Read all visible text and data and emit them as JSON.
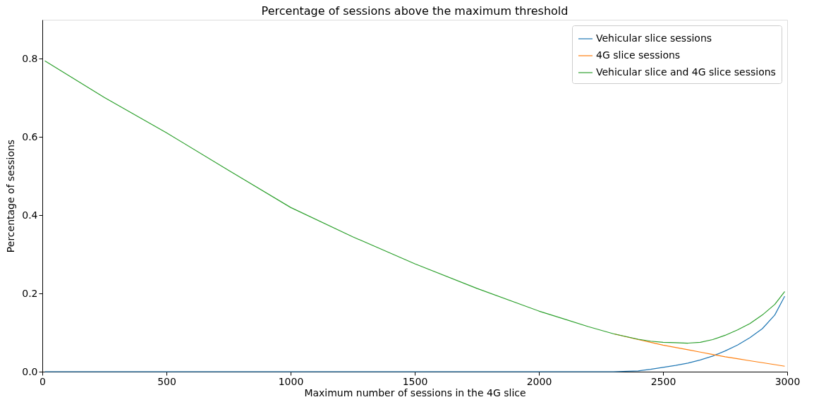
{
  "chart_data": {
    "type": "line",
    "title": "Percentage of sessions above the maximum threshold",
    "xlabel": "Maximum number of sessions in the 4G slice",
    "ylabel": "Percentage of sessions",
    "x": [
      10,
      250,
      500,
      750,
      1000,
      1250,
      1500,
      1750,
      2000,
      2100,
      2200,
      2300,
      2400,
      2450,
      2500,
      2550,
      2600,
      2650,
      2700,
      2750,
      2800,
      2850,
      2900,
      2950,
      2990
    ],
    "series": [
      {
        "name": "Vehicular slice sessions",
        "color": "#1f77b4",
        "values": [
          0,
          0,
          0,
          0,
          0,
          0,
          0,
          0,
          0,
          0,
          0,
          0,
          0.002,
          0.006,
          0.011,
          0.016,
          0.022,
          0.03,
          0.04,
          0.053,
          0.068,
          0.087,
          0.11,
          0.145,
          0.193
        ]
      },
      {
        "name": "4G slice sessions",
        "color": "#ff7f0e",
        "values": [
          null,
          null,
          null,
          null,
          null,
          null,
          null,
          null,
          null,
          null,
          null,
          0.097,
          0.082,
          0.075,
          0.068,
          0.062,
          0.056,
          0.05,
          0.044,
          0.038,
          0.033,
          0.028,
          0.023,
          0.018,
          0.014
        ]
      },
      {
        "name": "Vehicular slice and 4G slice sessions",
        "color": "#2ca02c",
        "values": [
          0.795,
          0.701,
          0.611,
          0.515,
          0.42,
          0.345,
          0.276,
          0.213,
          0.155,
          0.135,
          0.115,
          0.097,
          0.083,
          0.078,
          0.075,
          0.074,
          0.073,
          0.075,
          0.082,
          0.093,
          0.107,
          0.123,
          0.145,
          0.172,
          0.205
        ]
      }
    ],
    "xlim": [
      0,
      3000
    ],
    "xticks": [
      0,
      500,
      1000,
      1500,
      2000,
      2500,
      3000
    ],
    "ylim": [
      0,
      0.9
    ],
    "yticks": [
      {
        "value": 0,
        "label": "0.0"
      },
      0.2,
      0.4,
      0.6,
      0.8
    ],
    "legend": "top right",
    "grid": false,
    "marker": "none",
    "line_style": "solid"
  }
}
